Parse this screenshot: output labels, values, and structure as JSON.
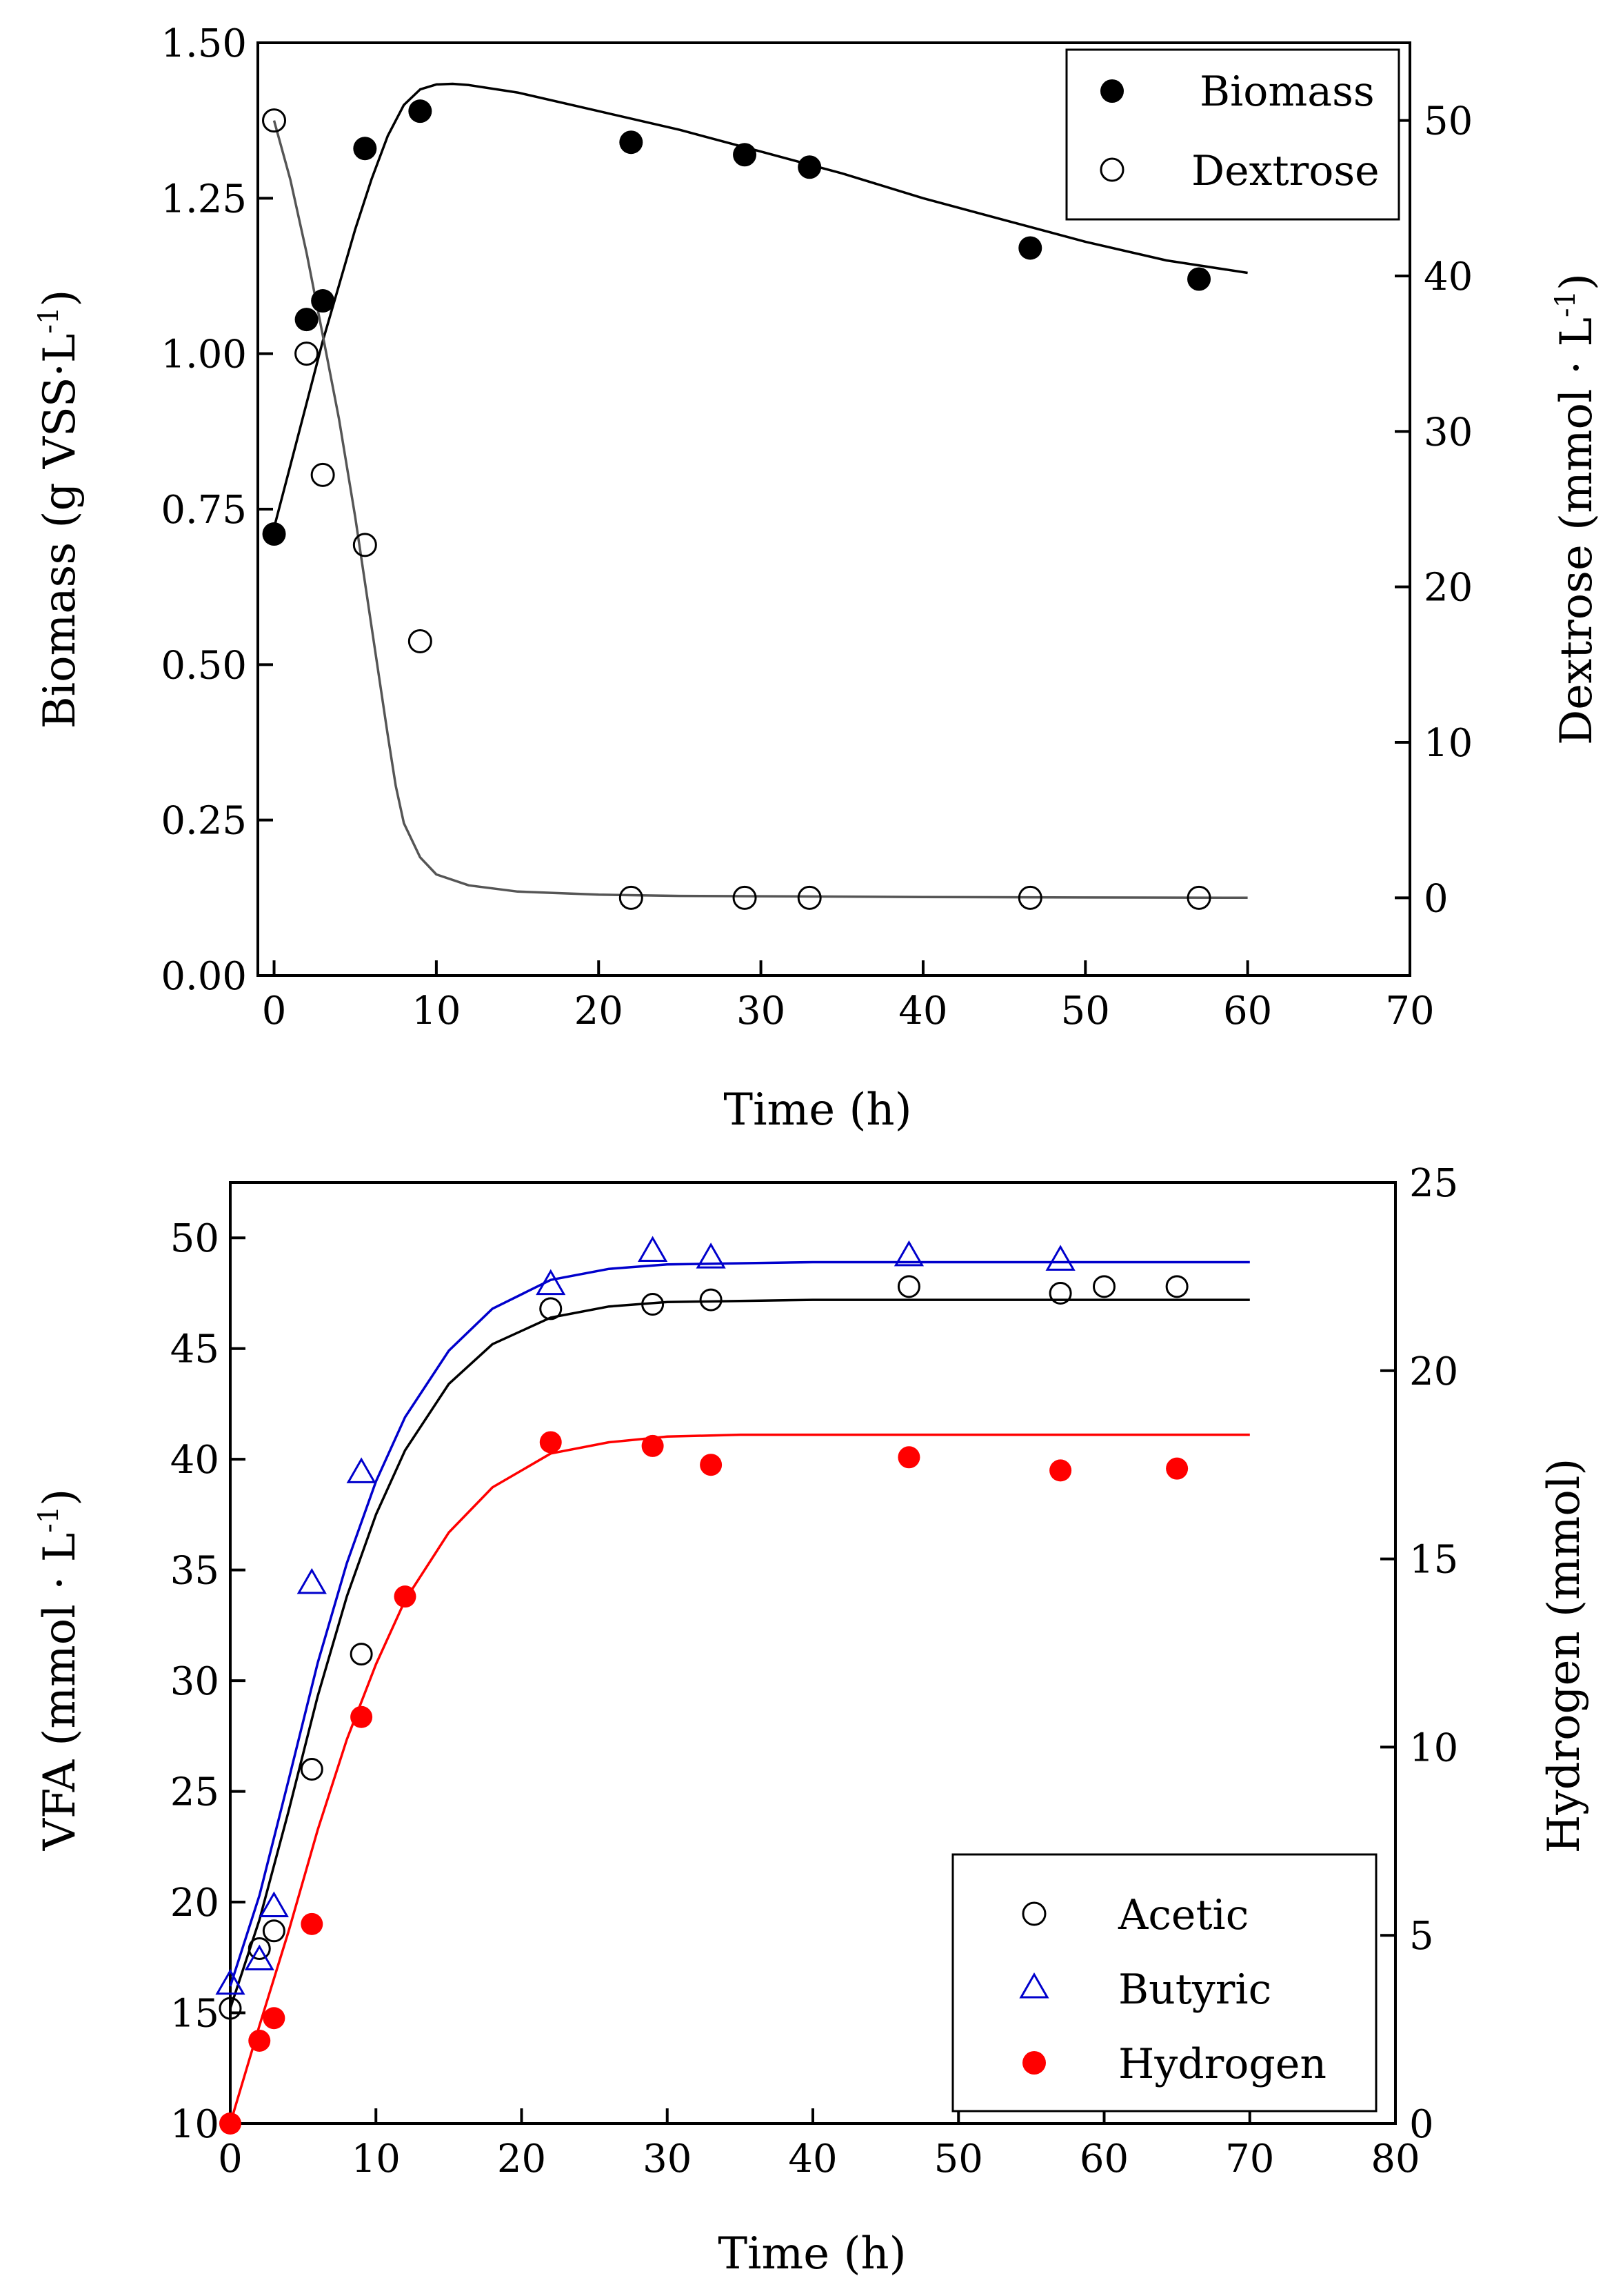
{
  "chart_data": [
    {
      "type": "scatter",
      "xlabel": "Time (h)",
      "ylabel": "Biomass (g VSS·L",
      "ylabel_sup": "-1",
      "ylabel_close": ")",
      "y2label": "Dextrose (mmol · L",
      "y2label_sup": "-1",
      "y2label_close": ")",
      "xlim": [
        -1,
        70
      ],
      "ylim": [
        0,
        1.5
      ],
      "y2lim": [
        -5,
        55
      ],
      "xticks": [
        0,
        10,
        20,
        30,
        40,
        50,
        60,
        70
      ],
      "xtick_labels": [
        "0",
        "10",
        "20",
        "30",
        "40",
        "50",
        "60",
        "70"
      ],
      "yticks": [
        0,
        0.25,
        0.5,
        0.75,
        1.0,
        1.25,
        1.5
      ],
      "ytick_labels": [
        "0.00",
        "0.25",
        "0.50",
        "0.75",
        "1.00",
        "1.25",
        "1.50"
      ],
      "y2ticks": [
        0,
        10,
        20,
        30,
        40,
        50
      ],
      "y2tick_labels": [
        "0",
        "10",
        "20",
        "30",
        "40",
        "50"
      ],
      "legend": "top-right",
      "series": [
        {
          "name": "Biomass",
          "axis": "left",
          "marker": "circle-filled",
          "color": "#000000",
          "x": [
            0,
            2,
            3,
            5.6,
            9,
            22,
            29,
            33,
            46.6,
            57
          ],
          "y": [
            0.71,
            1.055,
            1.085,
            1.33,
            1.39,
            1.34,
            1.32,
            1.3,
            1.17,
            1.12
          ]
        },
        {
          "name": "Dextrose",
          "axis": "right",
          "marker": "circle-open",
          "color": "#000000",
          "x": [
            0,
            2,
            3,
            5.6,
            9,
            22,
            29,
            33,
            46.6,
            57
          ],
          "y": [
            50,
            35,
            27.2,
            22.7,
            16.5,
            0,
            0,
            0,
            0,
            0
          ]
        }
      ],
      "fits": [
        {
          "name": "Biomass fit",
          "axis": "left",
          "color": "#000000",
          "x": [
            0,
            1,
            2,
            3,
            4,
            5,
            6,
            7,
            8,
            9,
            10,
            11,
            12,
            15,
            20,
            25,
            30,
            35,
            40,
            45,
            50,
            55,
            60
          ],
          "y": [
            0.72,
            0.82,
            0.92,
            1.02,
            1.11,
            1.2,
            1.28,
            1.35,
            1.4,
            1.425,
            1.433,
            1.434,
            1.432,
            1.42,
            1.39,
            1.36,
            1.325,
            1.29,
            1.25,
            1.215,
            1.18,
            1.15,
            1.13
          ]
        },
        {
          "name": "Dextrose fit",
          "axis": "right",
          "color": "#555555",
          "x": [
            0,
            1,
            2,
            3,
            4,
            5,
            6,
            7,
            7.5,
            8,
            9,
            10,
            12,
            15,
            20,
            25,
            30,
            40,
            50,
            60
          ],
          "y": [
            50,
            46.2,
            41.5,
            36.2,
            30.8,
            24.5,
            17.5,
            10.5,
            7.2,
            4.8,
            2.6,
            1.5,
            0.8,
            0.4,
            0.2,
            0.12,
            0.1,
            0.05,
            0.02,
            0
          ]
        }
      ]
    },
    {
      "type": "scatter",
      "xlabel": "Time (h)",
      "ylabel": "VFA (mmol · L",
      "ylabel_sup": "-1",
      "ylabel_close": ")",
      "y2label": "Hydrogen (mmol)",
      "xlim": [
        0,
        80
      ],
      "ylim": [
        10,
        52.5
      ],
      "y2lim": [
        0,
        25
      ],
      "xticks": [
        0,
        10,
        20,
        30,
        40,
        50,
        60,
        70,
        80
      ],
      "xtick_labels": [
        "0",
        "10",
        "20",
        "30",
        "40",
        "50",
        "60",
        "70",
        "80"
      ],
      "yticks": [
        10,
        15,
        20,
        25,
        30,
        35,
        40,
        45,
        50
      ],
      "ytick_labels": [
        "10",
        "15",
        "20",
        "25",
        "30",
        "35",
        "40",
        "45",
        "50"
      ],
      "y2ticks": [
        0,
        5,
        10,
        15,
        20,
        25
      ],
      "y2tick_labels": [
        "0",
        "5",
        "10",
        "15",
        "20",
        "25"
      ],
      "legend": "bottom-right",
      "series": [
        {
          "name": "Acetic",
          "axis": "left",
          "marker": "circle-open",
          "color": "#000000",
          "x": [
            0,
            2,
            3,
            5.6,
            9,
            22,
            29,
            33,
            46.6,
            57,
            60,
            65
          ],
          "y": [
            15.2,
            17.9,
            18.7,
            26,
            31.2,
            46.8,
            47,
            47.2,
            47.8,
            47.5,
            47.8,
            47.8
          ]
        },
        {
          "name": "Butyric",
          "axis": "left",
          "marker": "triangle-open",
          "color": "#0000cc",
          "x": [
            0,
            2,
            3,
            5.6,
            9,
            22,
            29,
            33,
            46.6,
            57
          ],
          "y": [
            16.3,
            17.4,
            19.8,
            34.4,
            39.4,
            47.9,
            49.4,
            49.1,
            49.2,
            49
          ]
        },
        {
          "name": "Hydrogen",
          "axis": "right",
          "marker": "circle-filled",
          "color": "#ff0000",
          "x": [
            0,
            2,
            3,
            5.6,
            9,
            12,
            22,
            29,
            33,
            46.6,
            57,
            65
          ],
          "y": [
            0,
            2.2,
            2.8,
            5.3,
            10.8,
            14,
            18.1,
            18,
            17.5,
            17.7,
            17.35,
            17.4
          ]
        }
      ],
      "fits": [
        {
          "name": "Acetic fit",
          "axis": "left",
          "color": "#000000",
          "x": [
            0,
            2,
            4,
            6,
            8,
            10,
            12,
            15,
            18,
            22,
            26,
            30,
            40,
            50,
            60,
            70
          ],
          "y": [
            15.2,
            19.2,
            24.1,
            29.3,
            33.8,
            37.5,
            40.4,
            43.4,
            45.2,
            46.4,
            46.9,
            47.1,
            47.2,
            47.2,
            47.2,
            47.2
          ]
        },
        {
          "name": "Butyric fit",
          "axis": "left",
          "color": "#0000cc",
          "x": [
            0,
            2,
            4,
            6,
            8,
            10,
            12,
            15,
            18,
            22,
            26,
            30,
            40,
            50,
            60,
            70
          ],
          "y": [
            16.2,
            20.3,
            25.5,
            30.8,
            35.3,
            39,
            41.9,
            44.9,
            46.8,
            48.1,
            48.6,
            48.8,
            48.9,
            48.9,
            48.9,
            48.9
          ]
        },
        {
          "name": "Hydrogen fit",
          "axis": "right",
          "color": "#ff0000",
          "x": [
            0,
            2,
            4,
            6,
            8,
            10,
            12,
            15,
            18,
            22,
            26,
            30,
            35,
            40,
            50,
            60,
            70
          ],
          "y": [
            0,
            2.6,
            5.1,
            7.8,
            10.2,
            12.2,
            13.9,
            15.7,
            16.9,
            17.8,
            18.1,
            18.25,
            18.3,
            18.3,
            18.3,
            18.3,
            18.3
          ]
        }
      ]
    }
  ]
}
